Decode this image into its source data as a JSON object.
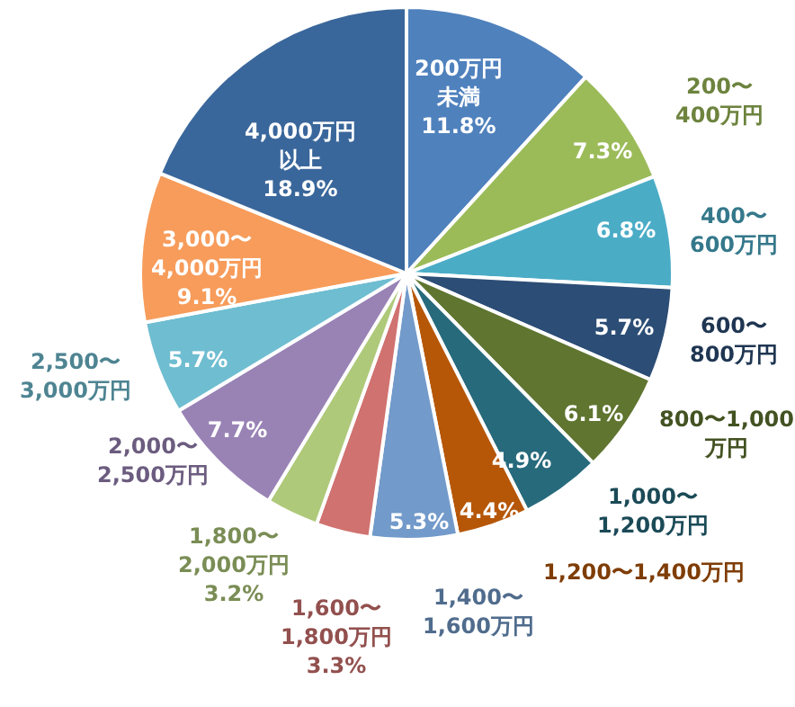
{
  "chart_data": {
    "type": "pie",
    "categories": [
      "200万円未満",
      "200〜400万円",
      "400〜600万円",
      "600〜800万円",
      "800〜1,000万円",
      "1,000〜1,200万円",
      "1,200〜1,400万円",
      "1,400〜1,600万円",
      "1,600〜1,800万円",
      "1,800〜2,000万円",
      "2,000〜2,500万円",
      "2,500〜3,000万円",
      "3,000〜4,000万円",
      "4,000万円以上"
    ],
    "values": [
      11.8,
      7.3,
      6.8,
      5.7,
      6.1,
      4.9,
      4.4,
      5.3,
      3.3,
      3.2,
      7.7,
      5.7,
      9.1,
      18.9
    ],
    "value_labels": [
      "11.8%",
      "7.3%",
      "6.8%",
      "5.7%",
      "6.1%",
      "4.9%",
      "4.4%",
      "5.3%",
      "3.3%",
      "3.2%",
      "7.7%",
      "5.7%",
      "9.1%",
      "18.9%"
    ],
    "colors": [
      "#4f81bd",
      "#9bbb59",
      "#4bacc6",
      "#2c4d75",
      "#5f7530",
      "#276a7c",
      "#b65708",
      "#729aca",
      "#d07270",
      "#afc97a",
      "#9983b5",
      "#6fbdd1",
      "#f79c5b",
      "#3a679b"
    ]
  }
}
